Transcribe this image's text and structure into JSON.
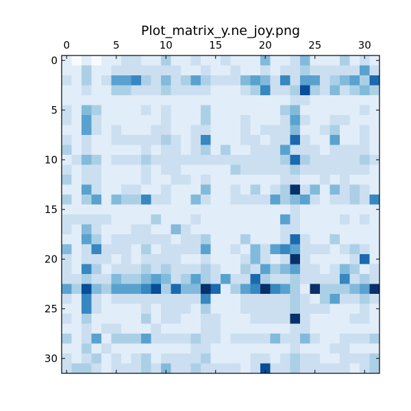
{
  "chart_data": {
    "type": "heatmap",
    "title": "Plot_matrix_y.ne_joy.png",
    "colormap": "Blues",
    "vmin": 0,
    "vmax": 9,
    "x_ticks": [
      0,
      5,
      10,
      15,
      20,
      25,
      30
    ],
    "y_ticks": [
      0,
      5,
      10,
      15,
      20,
      25,
      30
    ],
    "x_tick_position": "top",
    "rows": 32,
    "cols": 32,
    "matrix": [
      [
        1,
        0,
        1,
        0,
        1,
        1,
        2,
        2,
        1,
        1,
        3,
        1,
        1,
        2,
        1,
        1,
        2,
        1,
        1,
        1,
        4,
        1,
        1,
        2,
        4,
        1,
        1,
        1,
        3,
        1,
        2,
        1
      ],
      [
        1,
        1,
        3,
        1,
        1,
        2,
        2,
        2,
        2,
        2,
        2,
        2,
        1,
        1,
        2,
        1,
        1,
        2,
        1,
        1,
        2,
        1,
        2,
        2,
        3,
        2,
        2,
        2,
        2,
        2,
        5,
        2
      ],
      [
        2,
        1,
        3,
        1,
        2,
        5,
        5,
        6,
        3,
        2,
        4,
        2,
        3,
        5,
        3,
        2,
        2,
        2,
        4,
        5,
        4,
        2,
        6,
        2,
        5,
        5,
        2,
        3,
        4,
        5,
        3,
        7
      ],
      [
        1,
        1,
        2,
        1,
        1,
        3,
        3,
        2,
        2,
        2,
        3,
        2,
        2,
        2,
        2,
        1,
        1,
        1,
        2,
        3,
        6,
        2,
        2,
        3,
        8,
        3,
        2,
        4,
        2,
        3,
        4,
        3
      ],
      [
        1,
        1,
        1,
        1,
        1,
        1,
        1,
        1,
        1,
        1,
        1,
        1,
        1,
        1,
        1,
        1,
        1,
        1,
        1,
        1,
        1,
        1,
        1,
        2,
        2,
        1,
        1,
        1,
        1,
        1,
        1,
        1
      ],
      [
        2,
        1,
        4,
        3,
        1,
        1,
        1,
        1,
        2,
        1,
        2,
        1,
        1,
        1,
        3,
        1,
        1,
        1,
        1,
        1,
        1,
        1,
        3,
        4,
        1,
        1,
        1,
        1,
        1,
        1,
        2,
        1
      ],
      [
        2,
        1,
        5,
        2,
        1,
        1,
        1,
        1,
        1,
        1,
        2,
        1,
        1,
        1,
        3,
        1,
        1,
        1,
        2,
        1,
        1,
        1,
        2,
        5,
        2,
        1,
        1,
        2,
        2,
        1,
        1,
        1
      ],
      [
        1,
        1,
        5,
        2,
        1,
        2,
        1,
        1,
        1,
        2,
        2,
        1,
        1,
        2,
        2,
        1,
        1,
        1,
        2,
        1,
        2,
        2,
        2,
        4,
        1,
        1,
        2,
        3,
        1,
        1,
        2,
        1
      ],
      [
        2,
        1,
        2,
        1,
        1,
        2,
        2,
        2,
        2,
        2,
        3,
        2,
        1,
        2,
        6,
        1,
        1,
        1,
        2,
        2,
        1,
        2,
        2,
        7,
        2,
        1,
        1,
        5,
        1,
        1,
        2,
        1
      ],
      [
        3,
        1,
        2,
        1,
        1,
        1,
        1,
        1,
        2,
        1,
        2,
        2,
        1,
        2,
        3,
        1,
        3,
        1,
        1,
        2,
        2,
        2,
        5,
        2,
        2,
        2,
        1,
        2,
        2,
        2,
        2,
        1
      ],
      [
        1,
        2,
        4,
        3,
        1,
        2,
        2,
        2,
        3,
        2,
        2,
        2,
        2,
        2,
        2,
        2,
        2,
        2,
        2,
        2,
        2,
        2,
        3,
        7,
        3,
        2,
        2,
        2,
        2,
        2,
        3,
        2
      ],
      [
        2,
        1,
        2,
        2,
        1,
        1,
        1,
        1,
        2,
        1,
        2,
        2,
        1,
        1,
        1,
        1,
        1,
        3,
        2,
        2,
        2,
        2,
        2,
        3,
        2,
        2,
        2,
        2,
        2,
        2,
        2,
        1
      ],
      [
        3,
        1,
        2,
        2,
        1,
        1,
        1,
        1,
        2,
        1,
        1,
        2,
        2,
        1,
        2,
        1,
        1,
        1,
        1,
        1,
        1,
        1,
        2,
        2,
        1,
        1,
        2,
        1,
        2,
        1,
        1,
        1
      ],
      [
        1,
        1,
        5,
        2,
        1,
        1,
        2,
        2,
        1,
        1,
        2,
        1,
        1,
        1,
        4,
        1,
        1,
        2,
        1,
        3,
        1,
        2,
        3,
        9,
        2,
        4,
        1,
        4,
        2,
        3,
        2,
        1
      ],
      [
        3,
        1,
        3,
        5,
        1,
        4,
        3,
        3,
        6,
        2,
        2,
        1,
        1,
        4,
        2,
        1,
        1,
        2,
        2,
        2,
        2,
        5,
        3,
        4,
        5,
        2,
        1,
        2,
        2,
        3,
        2,
        6
      ],
      [
        1,
        1,
        1,
        1,
        1,
        1,
        1,
        1,
        1,
        1,
        1,
        1,
        1,
        1,
        1,
        1,
        1,
        1,
        1,
        1,
        1,
        1,
        1,
        2,
        1,
        1,
        1,
        1,
        1,
        1,
        1,
        1
      ],
      [
        2,
        2,
        2,
        2,
        2,
        1,
        1,
        1,
        1,
        3,
        1,
        1,
        1,
        2,
        1,
        1,
        1,
        1,
        1,
        1,
        1,
        1,
        5,
        2,
        1,
        1,
        1,
        1,
        2,
        1,
        2,
        1
      ],
      [
        2,
        1,
        4,
        2,
        1,
        1,
        1,
        2,
        2,
        1,
        1,
        4,
        2,
        1,
        1,
        1,
        1,
        1,
        1,
        1,
        1,
        1,
        2,
        2,
        1,
        1,
        1,
        1,
        1,
        1,
        1,
        1
      ],
      [
        1,
        1,
        5,
        3,
        1,
        2,
        2,
        2,
        2,
        2,
        2,
        1,
        2,
        2,
        3,
        1,
        1,
        1,
        3,
        1,
        1,
        1,
        2,
        7,
        2,
        1,
        1,
        3,
        1,
        1,
        1,
        1
      ],
      [
        4,
        1,
        2,
        6,
        2,
        2,
        2,
        1,
        3,
        1,
        2,
        2,
        2,
        2,
        5,
        1,
        1,
        2,
        1,
        4,
        2,
        5,
        6,
        5,
        2,
        2,
        2,
        1,
        2,
        3,
        2,
        1
      ],
      [
        2,
        1,
        2,
        2,
        2,
        1,
        2,
        1,
        2,
        2,
        2,
        2,
        1,
        1,
        2,
        1,
        1,
        1,
        2,
        4,
        2,
        1,
        2,
        9,
        2,
        1,
        1,
        1,
        1,
        2,
        7,
        1
      ],
      [
        2,
        1,
        6,
        3,
        1,
        2,
        2,
        2,
        3,
        2,
        3,
        2,
        2,
        2,
        3,
        2,
        1,
        1,
        3,
        2,
        5,
        3,
        4,
        5,
        2,
        2,
        1,
        2,
        4,
        3,
        1,
        2
      ],
      [
        2,
        2,
        3,
        2,
        2,
        4,
        3,
        3,
        4,
        5,
        4,
        2,
        3,
        5,
        3,
        2,
        5,
        2,
        2,
        7,
        3,
        2,
        2,
        3,
        2,
        2,
        2,
        2,
        6,
        2,
        3,
        2
      ],
      [
        5,
        3,
        8,
        4,
        3,
        5,
        5,
        5,
        6,
        8,
        3,
        7,
        4,
        4,
        9,
        7,
        1,
        3,
        5,
        6,
        9,
        6,
        5,
        3,
        1,
        9,
        3,
        3,
        3,
        4,
        5,
        9
      ],
      [
        2,
        1,
        6,
        2,
        1,
        2,
        2,
        2,
        2,
        2,
        2,
        2,
        2,
        2,
        6,
        1,
        1,
        1,
        2,
        2,
        2,
        2,
        2,
        3,
        2,
        1,
        3,
        5,
        2,
        2,
        3,
        2
      ],
      [
        1,
        1,
        6,
        2,
        1,
        1,
        1,
        1,
        2,
        1,
        2,
        2,
        2,
        1,
        3,
        1,
        1,
        1,
        2,
        2,
        2,
        2,
        2,
        3,
        2,
        2,
        2,
        1,
        1,
        1,
        2,
        1
      ],
      [
        2,
        1,
        3,
        1,
        1,
        1,
        1,
        1,
        3,
        1,
        2,
        2,
        1,
        1,
        2,
        2,
        1,
        1,
        1,
        2,
        2,
        2,
        2,
        9,
        2,
        1,
        1,
        1,
        1,
        2,
        2,
        1
      ],
      [
        1,
        1,
        2,
        1,
        2,
        2,
        1,
        1,
        1,
        2,
        1,
        1,
        1,
        1,
        2,
        2,
        1,
        1,
        1,
        1,
        1,
        1,
        1,
        2,
        2,
        1,
        1,
        1,
        1,
        1,
        1,
        1
      ],
      [
        3,
        1,
        2,
        5,
        1,
        3,
        3,
        3,
        5,
        2,
        2,
        2,
        2,
        3,
        2,
        2,
        1,
        2,
        2,
        2,
        2,
        4,
        2,
        2,
        4,
        2,
        1,
        1,
        2,
        2,
        2,
        3
      ],
      [
        1,
        1,
        3,
        1,
        2,
        1,
        1,
        1,
        1,
        1,
        1,
        1,
        1,
        2,
        2,
        1,
        1,
        1,
        1,
        1,
        1,
        1,
        1,
        2,
        1,
        1,
        1,
        2,
        2,
        1,
        1,
        1
      ],
      [
        2,
        1,
        2,
        3,
        1,
        2,
        1,
        2,
        3,
        1,
        2,
        2,
        2,
        2,
        3,
        1,
        1,
        1,
        1,
        2,
        2,
        1,
        2,
        3,
        2,
        2,
        1,
        1,
        2,
        2,
        2,
        3
      ],
      [
        2,
        3,
        3,
        2,
        1,
        2,
        2,
        2,
        3,
        2,
        4,
        2,
        2,
        3,
        2,
        2,
        2,
        2,
        1,
        2,
        8,
        2,
        2,
        3,
        2,
        2,
        2,
        2,
        2,
        1,
        2,
        3
      ]
    ]
  }
}
